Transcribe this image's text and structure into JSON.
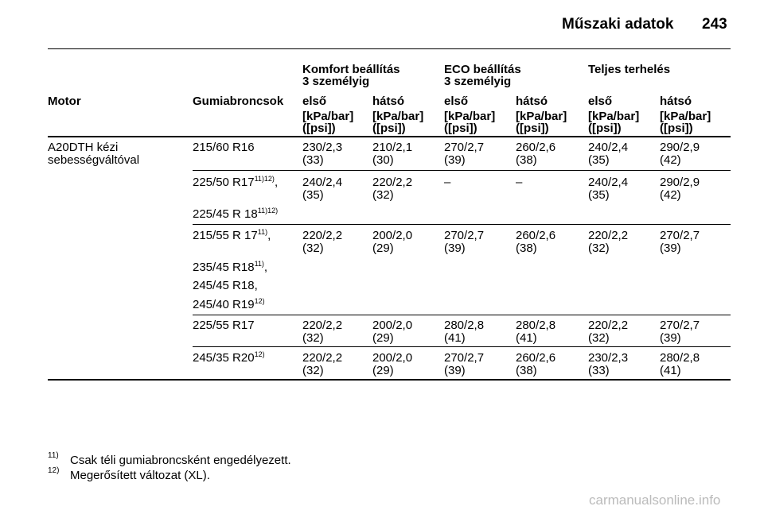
{
  "header": {
    "title": "Műszaki adatok",
    "page": "243"
  },
  "table": {
    "groups": [
      {
        "lines": [
          "Komfort beállítás",
          "3 személyig"
        ]
      },
      {
        "lines": [
          "ECO beállítás",
          "3 személyig"
        ]
      },
      {
        "lines": [
          "Teljes terhelés"
        ]
      }
    ],
    "columns": [
      "Motor",
      "Gumiabroncsok",
      "első",
      "hátsó",
      "első",
      "hátsó",
      "első",
      "hátsó"
    ],
    "units": [
      "[kPa/bar]",
      "([psi])"
    ],
    "rows": [
      {
        "motor": [
          "A20DTH kézi",
          "sebességváltóval"
        ],
        "tyres": [
          {
            "name": "215/60 R16"
          }
        ],
        "values": [
          [
            "230/2,3",
            "(33)"
          ],
          [
            "210/2,1",
            "(30)"
          ],
          [
            "270/2,7",
            "(39)"
          ],
          [
            "260/2,6",
            "(38)"
          ],
          [
            "240/2,4",
            "(35)"
          ],
          [
            "290/2,9",
            "(42)"
          ]
        ]
      },
      {
        "tyres": [
          {
            "name": "225/50 R17",
            "note": "11)12)",
            "after": ","
          },
          {
            "name": "225/45 R 18",
            "note": "11)12)"
          }
        ],
        "values": [
          [
            "240/2,4",
            "(35)"
          ],
          [
            "220/2,2",
            "(32)"
          ],
          [
            "–"
          ],
          [
            "–"
          ],
          [
            "240/2,4",
            "(35)"
          ],
          [
            "290/2,9",
            "(42)"
          ]
        ]
      },
      {
        "tyres": [
          {
            "name": "215/55 R 17",
            "note": "11)",
            "after": ","
          },
          {
            "name": "235/45 R18",
            "note": "11)",
            "after": ","
          },
          {
            "name": "245/45 R18,"
          },
          {
            "name": "245/40 R19",
            "note": "12)"
          }
        ],
        "values": [
          [
            "220/2,2",
            "(32)"
          ],
          [
            "200/2,0",
            "(29)"
          ],
          [
            "270/2,7",
            "(39)"
          ],
          [
            "260/2,6",
            "(38)"
          ],
          [
            "220/2,2",
            "(32)"
          ],
          [
            "270/2,7",
            "(39)"
          ]
        ]
      },
      {
        "tyres": [
          {
            "name": "225/55 R17"
          }
        ],
        "values": [
          [
            "220/2,2",
            "(32)"
          ],
          [
            "200/2,0",
            "(29)"
          ],
          [
            "280/2,8",
            "(41)"
          ],
          [
            "280/2,8",
            "(41)"
          ],
          [
            "220/2,2",
            "(32)"
          ],
          [
            "270/2,7",
            "(39)"
          ]
        ]
      },
      {
        "tyres": [
          {
            "name": "245/35 R20",
            "note": "12)"
          }
        ],
        "values": [
          [
            "220/2,2",
            "(32)"
          ],
          [
            "200/2,0",
            "(29)"
          ],
          [
            "270/2,7",
            "(39)"
          ],
          [
            "260/2,6",
            "(38)"
          ],
          [
            "230/2,3",
            "(33)"
          ],
          [
            "280/2,8",
            "(41)"
          ]
        ]
      }
    ]
  },
  "footnotes": [
    {
      "mark": "11)",
      "text": "Csak téli gumiabroncsként engedélyezett."
    },
    {
      "mark": "12)",
      "text": "Megerősített változat (XL)."
    }
  ],
  "watermark": "carmanualsonline.info"
}
